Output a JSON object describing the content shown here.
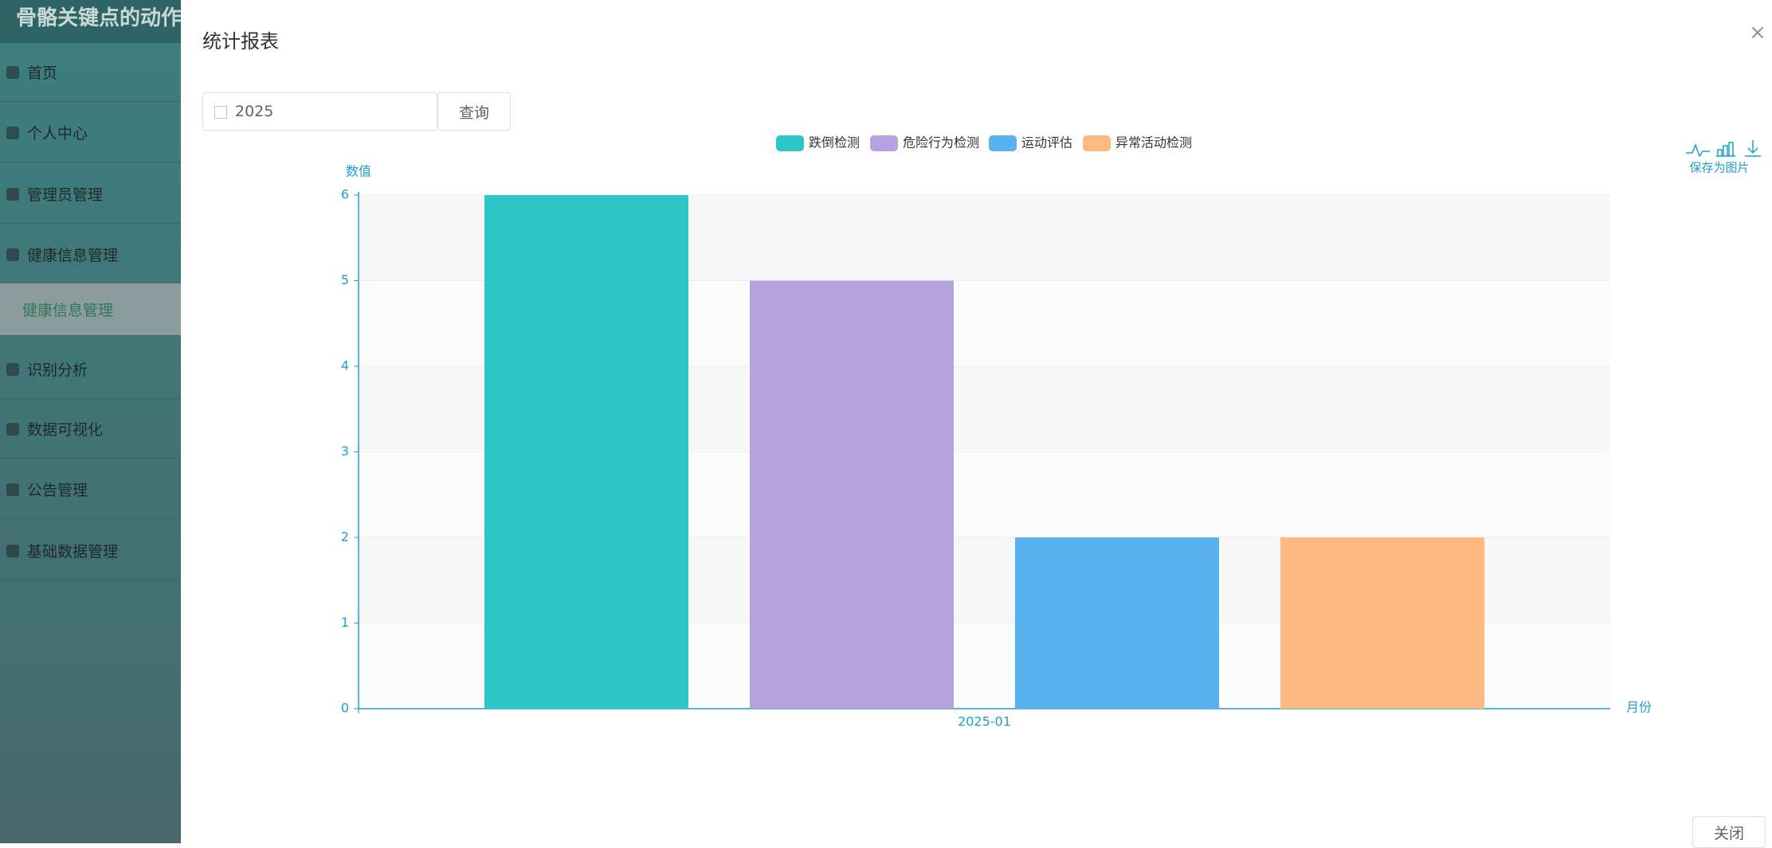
{
  "header": {
    "title": "骨骼关键点的动作"
  },
  "menu": [
    "首页",
    "个人中心",
    "管理员管理",
    "健康信息管理",
    "健康信息管理",
    "识别分析",
    "数据可视化",
    "公告管理",
    "基础数据管理"
  ],
  "dialog": {
    "title": "统计报表",
    "year": "2025",
    "query": "查询",
    "close": "关闭",
    "save_image": "保存为图片"
  },
  "chart_data": {
    "type": "bar",
    "categories": [
      "2025-01"
    ],
    "series": [
      {
        "name": "跌倒检测",
        "color": "#2ec7c9",
        "values": [
          6
        ]
      },
      {
        "name": "危险行为检测",
        "color": "#b6a2de",
        "values": [
          5
        ]
      },
      {
        "name": "运动评估",
        "color": "#5ab1ef",
        "values": [
          2
        ]
      },
      {
        "name": "异常活动检测",
        "color": "#ffb980",
        "values": [
          2
        ]
      }
    ],
    "y_label": "数值",
    "x_label": "月份",
    "ylim": [
      0,
      6
    ],
    "yticks": [
      0,
      1,
      2,
      3,
      4,
      5,
      6
    ],
    "split_area": true,
    "legend": "top"
  }
}
